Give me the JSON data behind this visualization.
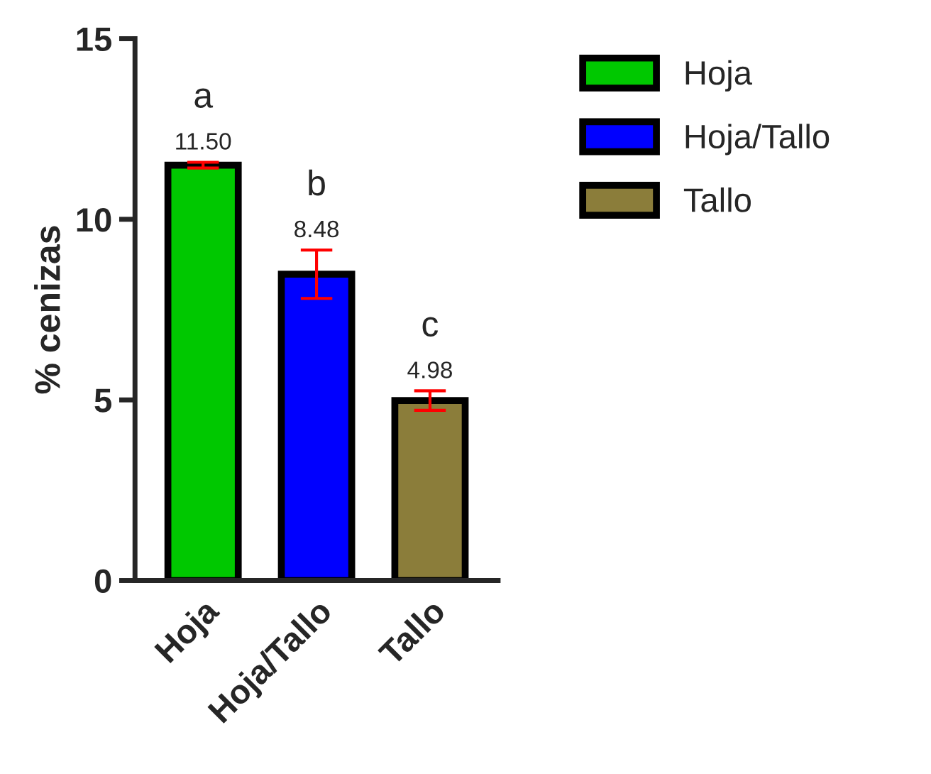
{
  "chart_data": {
    "type": "bar",
    "ylabel": "% cenizas",
    "categories": [
      "Hoja",
      "Hoja/Tallo",
      "Tallo"
    ],
    "series": [
      {
        "name": "Hoja",
        "color": "#00c800",
        "values": [
          11.5,
          null,
          null
        ],
        "errors": [
          0.08,
          null,
          null
        ],
        "value_labels": [
          "11.50",
          null,
          null
        ]
      },
      {
        "name": "Hoja/Tallo",
        "color": "#0000ff",
        "values": [
          null,
          8.48,
          null
        ],
        "errors": [
          null,
          0.67,
          null
        ],
        "value_labels": [
          null,
          "8.48",
          null
        ]
      },
      {
        "name": "Tallo",
        "color": "#8b7d3a",
        "values": [
          null,
          null,
          4.98
        ],
        "errors": [
          null,
          null,
          0.27
        ],
        "value_labels": [
          null,
          null,
          "4.98"
        ]
      }
    ],
    "annotations": [
      "a",
      "b",
      "c"
    ],
    "ylim": [
      0,
      15
    ],
    "yticks": [
      0,
      5,
      10,
      15
    ],
    "legend": "right",
    "grid": false
  }
}
